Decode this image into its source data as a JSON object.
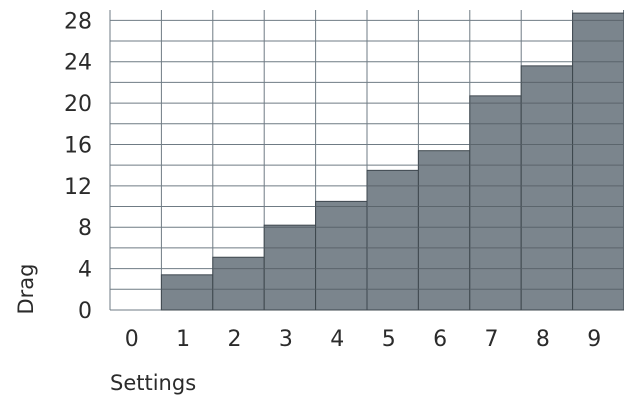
{
  "chart_data": {
    "type": "bar",
    "title": "",
    "xlabel": "Settings",
    "ylabel": "Drag",
    "categories": [
      "0",
      "1",
      "2",
      "3",
      "4",
      "5",
      "6",
      "7",
      "8",
      "9"
    ],
    "values": [
      0,
      3.4,
      5.1,
      8.2,
      10.5,
      13.5,
      15.4,
      20.7,
      23.6,
      28.7
    ],
    "ylim": [
      0,
      29
    ],
    "y_ticks": [
      0,
      4,
      8,
      12,
      16,
      20,
      24,
      28
    ],
    "y_tick_labels": [
      "0",
      "4",
      "8",
      "12",
      "16",
      "20",
      "24",
      "28"
    ],
    "minor_gridline_step": 2,
    "grid": true,
    "bar_gap": 0,
    "legend": "none",
    "colors": {
      "bar_fill": "#7b858d",
      "bar_inner_grid": "#5b656c",
      "bar_edge": "#3e474e",
      "grid_line": "#6f7b84",
      "text": "#2b2b2b"
    }
  }
}
